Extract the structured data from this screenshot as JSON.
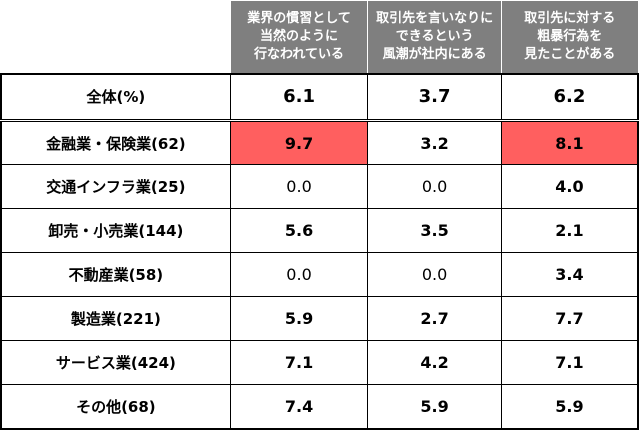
{
  "chart_data": {
    "type": "table",
    "columns": [
      {
        "lines": [
          "業界の慣習として",
          "当然のように",
          "行なわれている"
        ]
      },
      {
        "lines": [
          "取引先を言いなりに",
          "できるという",
          "風潮が社内にある"
        ]
      },
      {
        "lines": [
          "取引先に対する",
          "粗暴行為を",
          "見たことがある"
        ]
      }
    ],
    "rows": [
      {
        "label": "全体(%)",
        "values": [
          "6.1",
          "3.7",
          "6.2"
        ],
        "bold": [
          true,
          true,
          true
        ],
        "highlight": [
          false,
          false,
          false
        ]
      },
      {
        "label": "金融業・保険業(62)",
        "values": [
          "9.7",
          "3.2",
          "8.1"
        ],
        "bold": [
          true,
          true,
          true
        ],
        "highlight": [
          true,
          false,
          true
        ]
      },
      {
        "label": "交通インフラ業(25)",
        "values": [
          "0.0",
          "0.0",
          "4.0"
        ],
        "bold": [
          false,
          false,
          true
        ],
        "highlight": [
          false,
          false,
          false
        ]
      },
      {
        "label": "卸売・小売業(144)",
        "values": [
          "5.6",
          "3.5",
          "2.1"
        ],
        "bold": [
          true,
          true,
          true
        ],
        "highlight": [
          false,
          false,
          false
        ]
      },
      {
        "label": "不動産業(58)",
        "values": [
          "0.0",
          "0.0",
          "3.4"
        ],
        "bold": [
          false,
          false,
          true
        ],
        "highlight": [
          false,
          false,
          false
        ]
      },
      {
        "label": "製造業(221)",
        "values": [
          "5.9",
          "2.7",
          "7.7"
        ],
        "bold": [
          true,
          true,
          true
        ],
        "highlight": [
          false,
          false,
          false
        ]
      },
      {
        "label": "サービス業(424)",
        "values": [
          "7.1",
          "4.2",
          "7.1"
        ],
        "bold": [
          true,
          true,
          true
        ],
        "highlight": [
          false,
          false,
          false
        ]
      },
      {
        "label": "その他(68)",
        "values": [
          "7.4",
          "5.9",
          "5.9"
        ],
        "bold": [
          true,
          true,
          true
        ],
        "highlight": [
          false,
          false,
          false
        ]
      }
    ],
    "colors": {
      "header_bg": "#7f7f7f",
      "header_text": "#ffffff",
      "highlight": "#ff5f5f"
    }
  }
}
